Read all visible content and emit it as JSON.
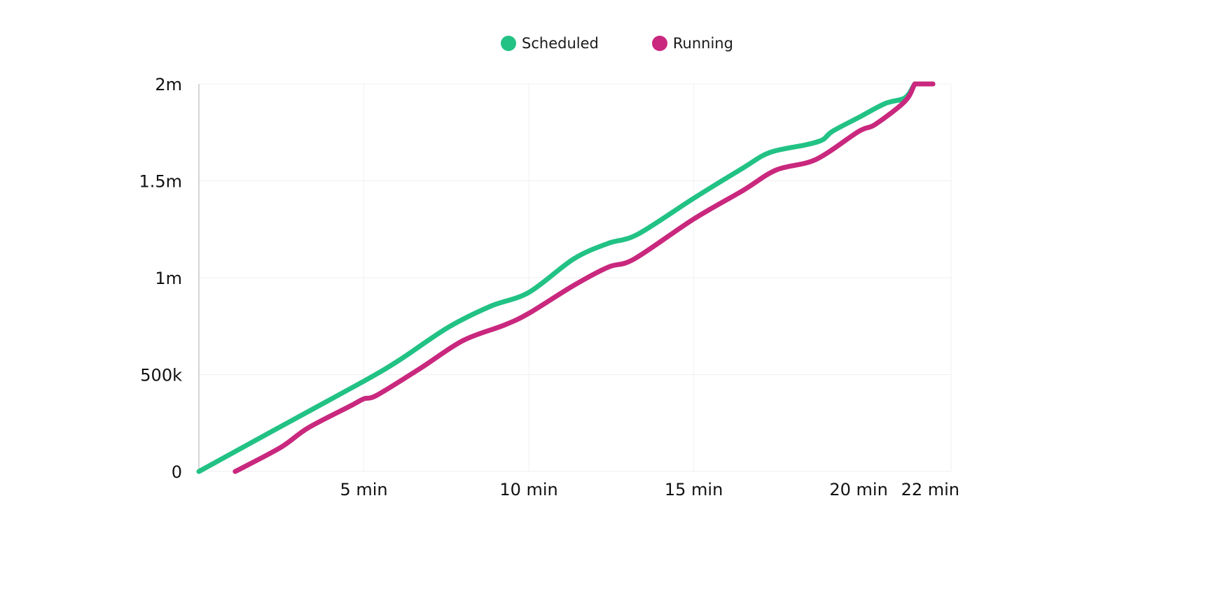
{
  "chart_data": {
    "type": "line",
    "title": "",
    "xlabel": "",
    "ylabel": "",
    "legend_position": "top-center",
    "grid": true,
    "xlim": [
      0,
      22.8
    ],
    "ylim": [
      0,
      2000000
    ],
    "x_ticks": [
      {
        "value": 5,
        "label": "5 min"
      },
      {
        "value": 10,
        "label": "10 min"
      },
      {
        "value": 15,
        "label": "15 min"
      },
      {
        "value": 20,
        "label": "20 min"
      },
      {
        "value": 22,
        "label": "22 min"
      }
    ],
    "y_ticks": [
      {
        "value": 0,
        "label": "0"
      },
      {
        "value": 500000,
        "label": "500k"
      },
      {
        "value": 1000000,
        "label": "1m"
      },
      {
        "value": 1500000,
        "label": "1.5m"
      },
      {
        "value": 2000000,
        "label": "2m"
      }
    ],
    "series": [
      {
        "name": "Scheduled",
        "color": "#22c285",
        "points": [
          [
            0,
            0
          ],
          [
            2.47,
            231000
          ],
          [
            5,
            466000
          ],
          [
            6.07,
            574000
          ],
          [
            7.56,
            744000
          ],
          [
            8.83,
            852000
          ],
          [
            10,
            924000
          ],
          [
            11.36,
            1097000
          ],
          [
            12.4,
            1177000
          ],
          [
            13.3,
            1224000
          ],
          [
            15,
            1410000
          ],
          [
            16.5,
            1567000
          ],
          [
            17.3,
            1646000
          ],
          [
            18.4,
            1686000
          ],
          [
            18.9,
            1711000
          ],
          [
            19.2,
            1755000
          ],
          [
            20,
            1827000
          ],
          [
            20.8,
            1899000
          ],
          [
            21.4,
            1928000
          ],
          [
            21.7,
            2000000
          ],
          [
            22.25,
            2000000
          ]
        ]
      },
      {
        "name": "Running",
        "color": "#c9287e",
        "points": [
          [
            1.1,
            0
          ],
          [
            2.47,
            123000
          ],
          [
            3.3,
            224000
          ],
          [
            4.6,
            339000
          ],
          [
            5,
            375000
          ],
          [
            5.4,
            394000
          ],
          [
            6.7,
            531000
          ],
          [
            8,
            675000
          ],
          [
            9.25,
            755000
          ],
          [
            10,
            816000
          ],
          [
            11.36,
            960000
          ],
          [
            12.4,
            1054000
          ],
          [
            13.2,
            1097000
          ],
          [
            15,
            1303000
          ],
          [
            16.5,
            1451000
          ],
          [
            17.5,
            1556000
          ],
          [
            18.7,
            1610000
          ],
          [
            20,
            1755000
          ],
          [
            20.5,
            1791000
          ],
          [
            21.4,
            1910000
          ],
          [
            21.7,
            2000000
          ],
          [
            22.25,
            2000000
          ]
        ]
      }
    ]
  }
}
